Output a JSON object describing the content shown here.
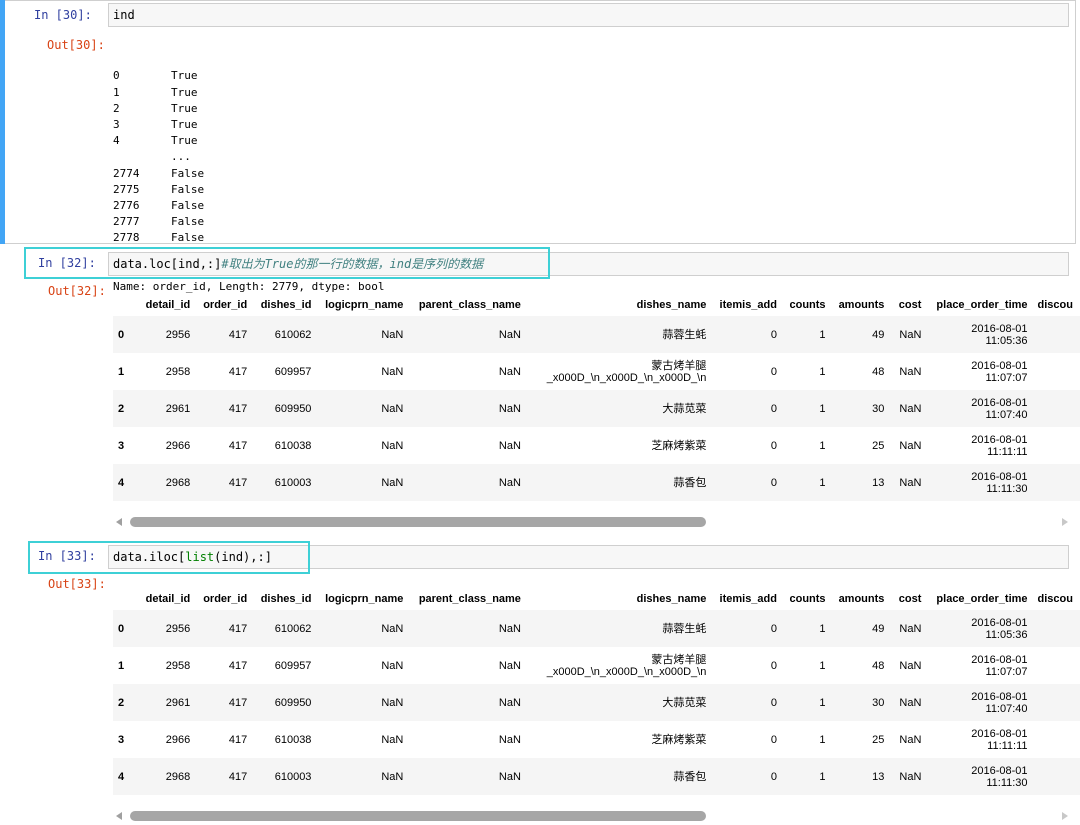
{
  "cells": [
    {
      "in_prompt": "In [30]:",
      "code": "ind",
      "out_prompt": "Out[30]:",
      "output_rows": [
        {
          "idx": "0",
          "val": "True"
        },
        {
          "idx": "1",
          "val": "True"
        },
        {
          "idx": "2",
          "val": "True"
        },
        {
          "idx": "3",
          "val": "True"
        },
        {
          "idx": "4",
          "val": "True"
        },
        {
          "idx": "",
          "val": "..."
        },
        {
          "idx": "2774",
          "val": "False"
        },
        {
          "idx": "2775",
          "val": "False"
        },
        {
          "idx": "2776",
          "val": "False"
        },
        {
          "idx": "2777",
          "val": "False"
        },
        {
          "idx": "2778",
          "val": "False"
        }
      ],
      "output_footer": "Name: order_id, Length: 2779, dtype: bool"
    },
    {
      "in_prompt": "In [32]:",
      "code_main": "data.loc[ind,:]",
      "code_comment": "#取出为True的那一行的数据，ind是序列的数据",
      "out_prompt": "Out[32]:"
    },
    {
      "in_prompt": "In [33]:",
      "code_prefix": "data.iloc[",
      "code_builtin": "list",
      "code_suffix": "(ind),:]",
      "out_prompt": "Out[33]:"
    }
  ],
  "table": {
    "columns": [
      "",
      "detail_id",
      "order_id",
      "dishes_id",
      "logicprn_name",
      "parent_class_name",
      "dishes_name",
      "itemis_add",
      "counts",
      "amounts",
      "cost",
      "place_order_time",
      "discou"
    ],
    "rows": [
      {
        "idx": "0",
        "detail_id": "2956",
        "order_id": "417",
        "dishes_id": "610062",
        "logicprn_name": "NaN",
        "parent_class_name": "NaN",
        "dishes_name_1": "蒜蓉生蚝",
        "dishes_name_2": "",
        "itemis_add": "0",
        "counts": "1",
        "amounts": "49",
        "cost": "NaN",
        "date": "2016-08-01",
        "time": "11:05:36"
      },
      {
        "idx": "1",
        "detail_id": "2958",
        "order_id": "417",
        "dishes_id": "609957",
        "logicprn_name": "NaN",
        "parent_class_name": "NaN",
        "dishes_name_1": "蒙古烤羊腿",
        "dishes_name_2": "_x000D_\\n_x000D_\\n_x000D_\\n",
        "itemis_add": "0",
        "counts": "1",
        "amounts": "48",
        "cost": "NaN",
        "date": "2016-08-01",
        "time": "11:07:07"
      },
      {
        "idx": "2",
        "detail_id": "2961",
        "order_id": "417",
        "dishes_id": "609950",
        "logicprn_name": "NaN",
        "parent_class_name": "NaN",
        "dishes_name_1": "大蒜苋菜",
        "dishes_name_2": "",
        "itemis_add": "0",
        "counts": "1",
        "amounts": "30",
        "cost": "NaN",
        "date": "2016-08-01",
        "time": "11:07:40"
      },
      {
        "idx": "3",
        "detail_id": "2966",
        "order_id": "417",
        "dishes_id": "610038",
        "logicprn_name": "NaN",
        "parent_class_name": "NaN",
        "dishes_name_1": "芝麻烤紫菜",
        "dishes_name_2": "",
        "itemis_add": "0",
        "counts": "1",
        "amounts": "25",
        "cost": "NaN",
        "date": "2016-08-01",
        "time": "11:11:11"
      },
      {
        "idx": "4",
        "detail_id": "2968",
        "order_id": "417",
        "dishes_id": "610003",
        "logicprn_name": "NaN",
        "parent_class_name": "NaN",
        "dishes_name_1": "蒜香包",
        "dishes_name_2": "",
        "itemis_add": "0",
        "counts": "1",
        "amounts": "13",
        "cost": "NaN",
        "date": "2016-08-01",
        "time": "11:11:30"
      }
    ]
  },
  "colors": {
    "in_prompt": "#303f9f",
    "out_prompt": "#d84315",
    "selection_bar": "#42a5f5",
    "highlight_box": "#3ed0d6",
    "comment": "#408080"
  }
}
